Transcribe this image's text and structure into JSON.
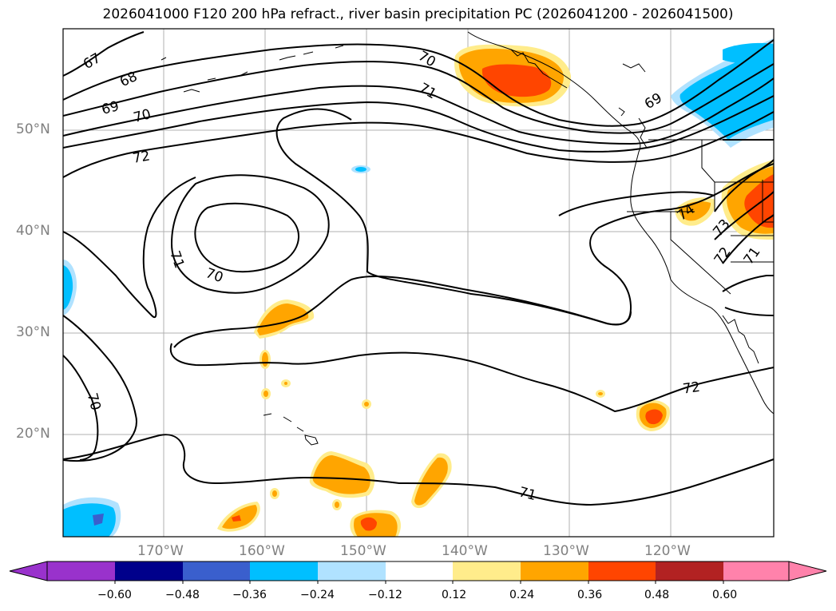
{
  "title": "2026041000 F120 200 hPa refract., river basin precipitation PC (2026041200 - 2026041500)",
  "lat_labels": [
    "50°N",
    "40°N",
    "30°N",
    "20°N"
  ],
  "lon_labels": [
    "170°W",
    "160°W",
    "150°W",
    "140°W",
    "130°W",
    "120°W"
  ],
  "contour_labels": [
    "67",
    "68",
    "69",
    "70",
    "70",
    "71",
    "72",
    "71",
    "70",
    "70",
    "71",
    "72",
    "69",
    "73",
    "72",
    "71",
    "74"
  ],
  "colorbar": {
    "labels": [
      "−0.60",
      "−0.48",
      "−0.36",
      "−0.24",
      "−0.12",
      "0.12",
      "0.24",
      "0.36",
      "0.48",
      "0.60"
    ],
    "colors": [
      "#9932cc",
      "#00008b",
      "#3a5fcd",
      "#00bfff",
      "#b0e2ff",
      "#ffffff",
      "#ffec8b",
      "#ffa500",
      "#ff4500",
      "#b22222",
      "#ff82ab"
    ]
  }
}
